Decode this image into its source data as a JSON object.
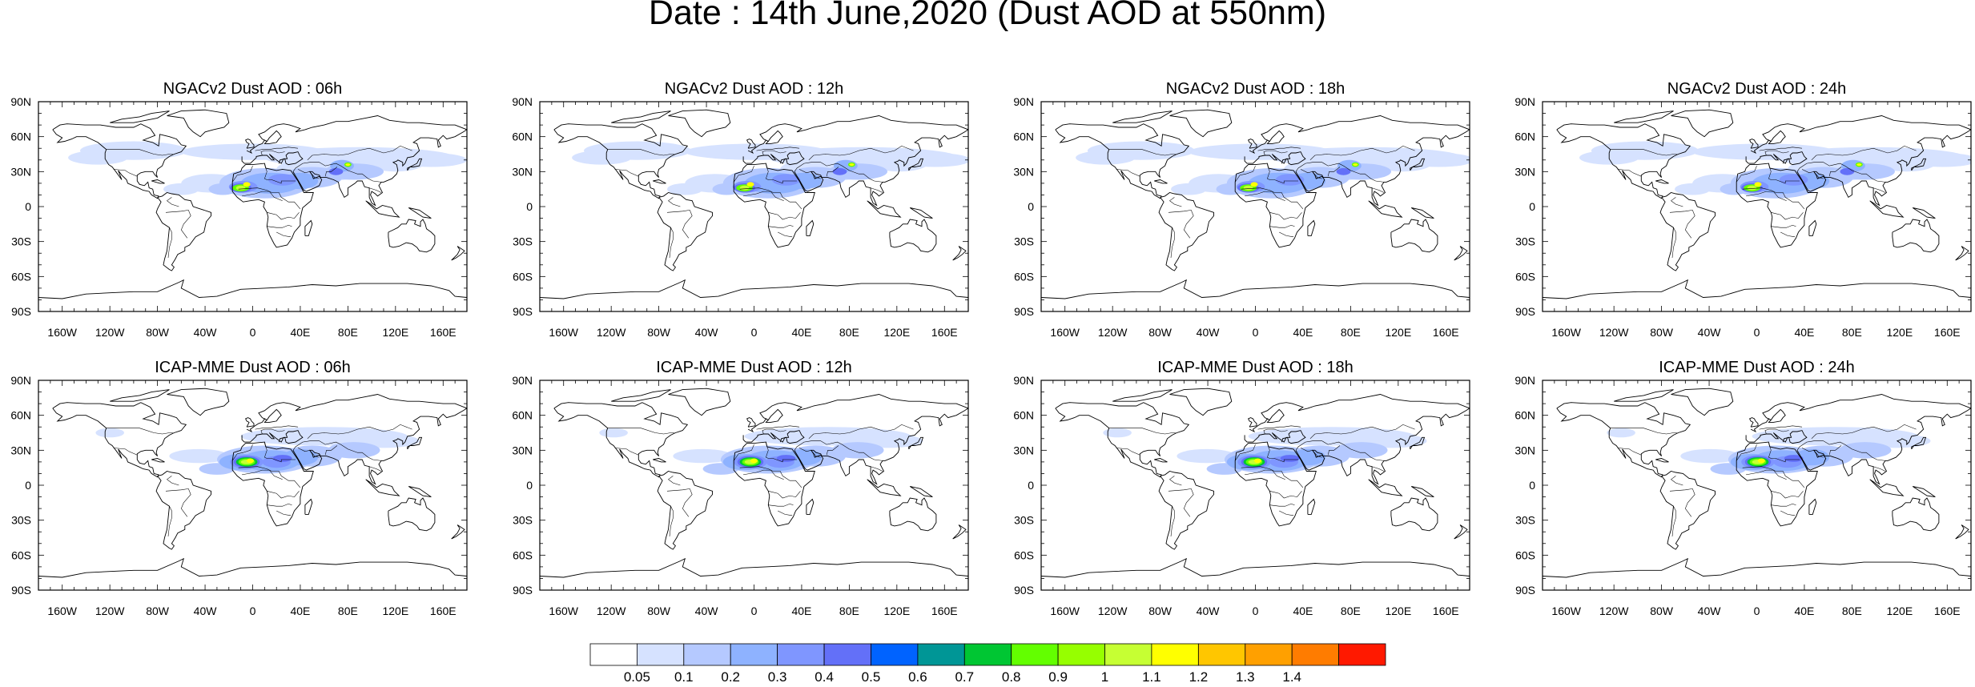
{
  "figure": {
    "title": "Date : 14th June,2020 (Dust AOD at 550nm)"
  },
  "axes": {
    "lat_labels": [
      "90N",
      "60N",
      "30N",
      "0",
      "30S",
      "60S",
      "90S"
    ],
    "lon_labels": [
      "160W",
      "120W",
      "80W",
      "40W",
      "0",
      "40E",
      "80E",
      "120E",
      "160E"
    ]
  },
  "panels": [
    {
      "title": "NGACv2 Dust AOD : 06h",
      "model": "NGACv2",
      "forecast_hour": "06h"
    },
    {
      "title": "NGACv2 Dust AOD : 12h",
      "model": "NGACv2",
      "forecast_hour": "12h"
    },
    {
      "title": "NGACv2 Dust AOD : 18h",
      "model": "NGACv2",
      "forecast_hour": "18h"
    },
    {
      "title": "NGACv2 Dust AOD : 24h",
      "model": "NGACv2",
      "forecast_hour": "24h"
    },
    {
      "title": "ICAP-MME Dust AOD : 06h",
      "model": "ICAP-MME",
      "forecast_hour": "06h"
    },
    {
      "title": "ICAP-MME Dust AOD : 12h",
      "model": "ICAP-MME",
      "forecast_hour": "12h"
    },
    {
      "title": "ICAP-MME Dust AOD : 18h",
      "model": "ICAP-MME",
      "forecast_hour": "18h"
    },
    {
      "title": "ICAP-MME Dust AOD : 24h",
      "model": "ICAP-MME",
      "forecast_hour": "24h"
    }
  ],
  "colorbar": {
    "colors": [
      "#ffffff",
      "#d6e2ff",
      "#b5c9ff",
      "#8eb2ff",
      "#7f96ff",
      "#6370f8",
      "#0063ff",
      "#009696",
      "#00c633",
      "#63ff00",
      "#96ff00",
      "#c6ff33",
      "#ffff00",
      "#ffc600",
      "#ffa000",
      "#ff7c00",
      "#ff1900"
    ],
    "boundaries": [
      "0.05",
      "0.1",
      "0.2",
      "0.3",
      "0.4",
      "0.5",
      "0.6",
      "0.7",
      "0.8",
      "0.9",
      "1",
      "1.1",
      "1.2",
      "1.3",
      "1.4"
    ]
  }
}
